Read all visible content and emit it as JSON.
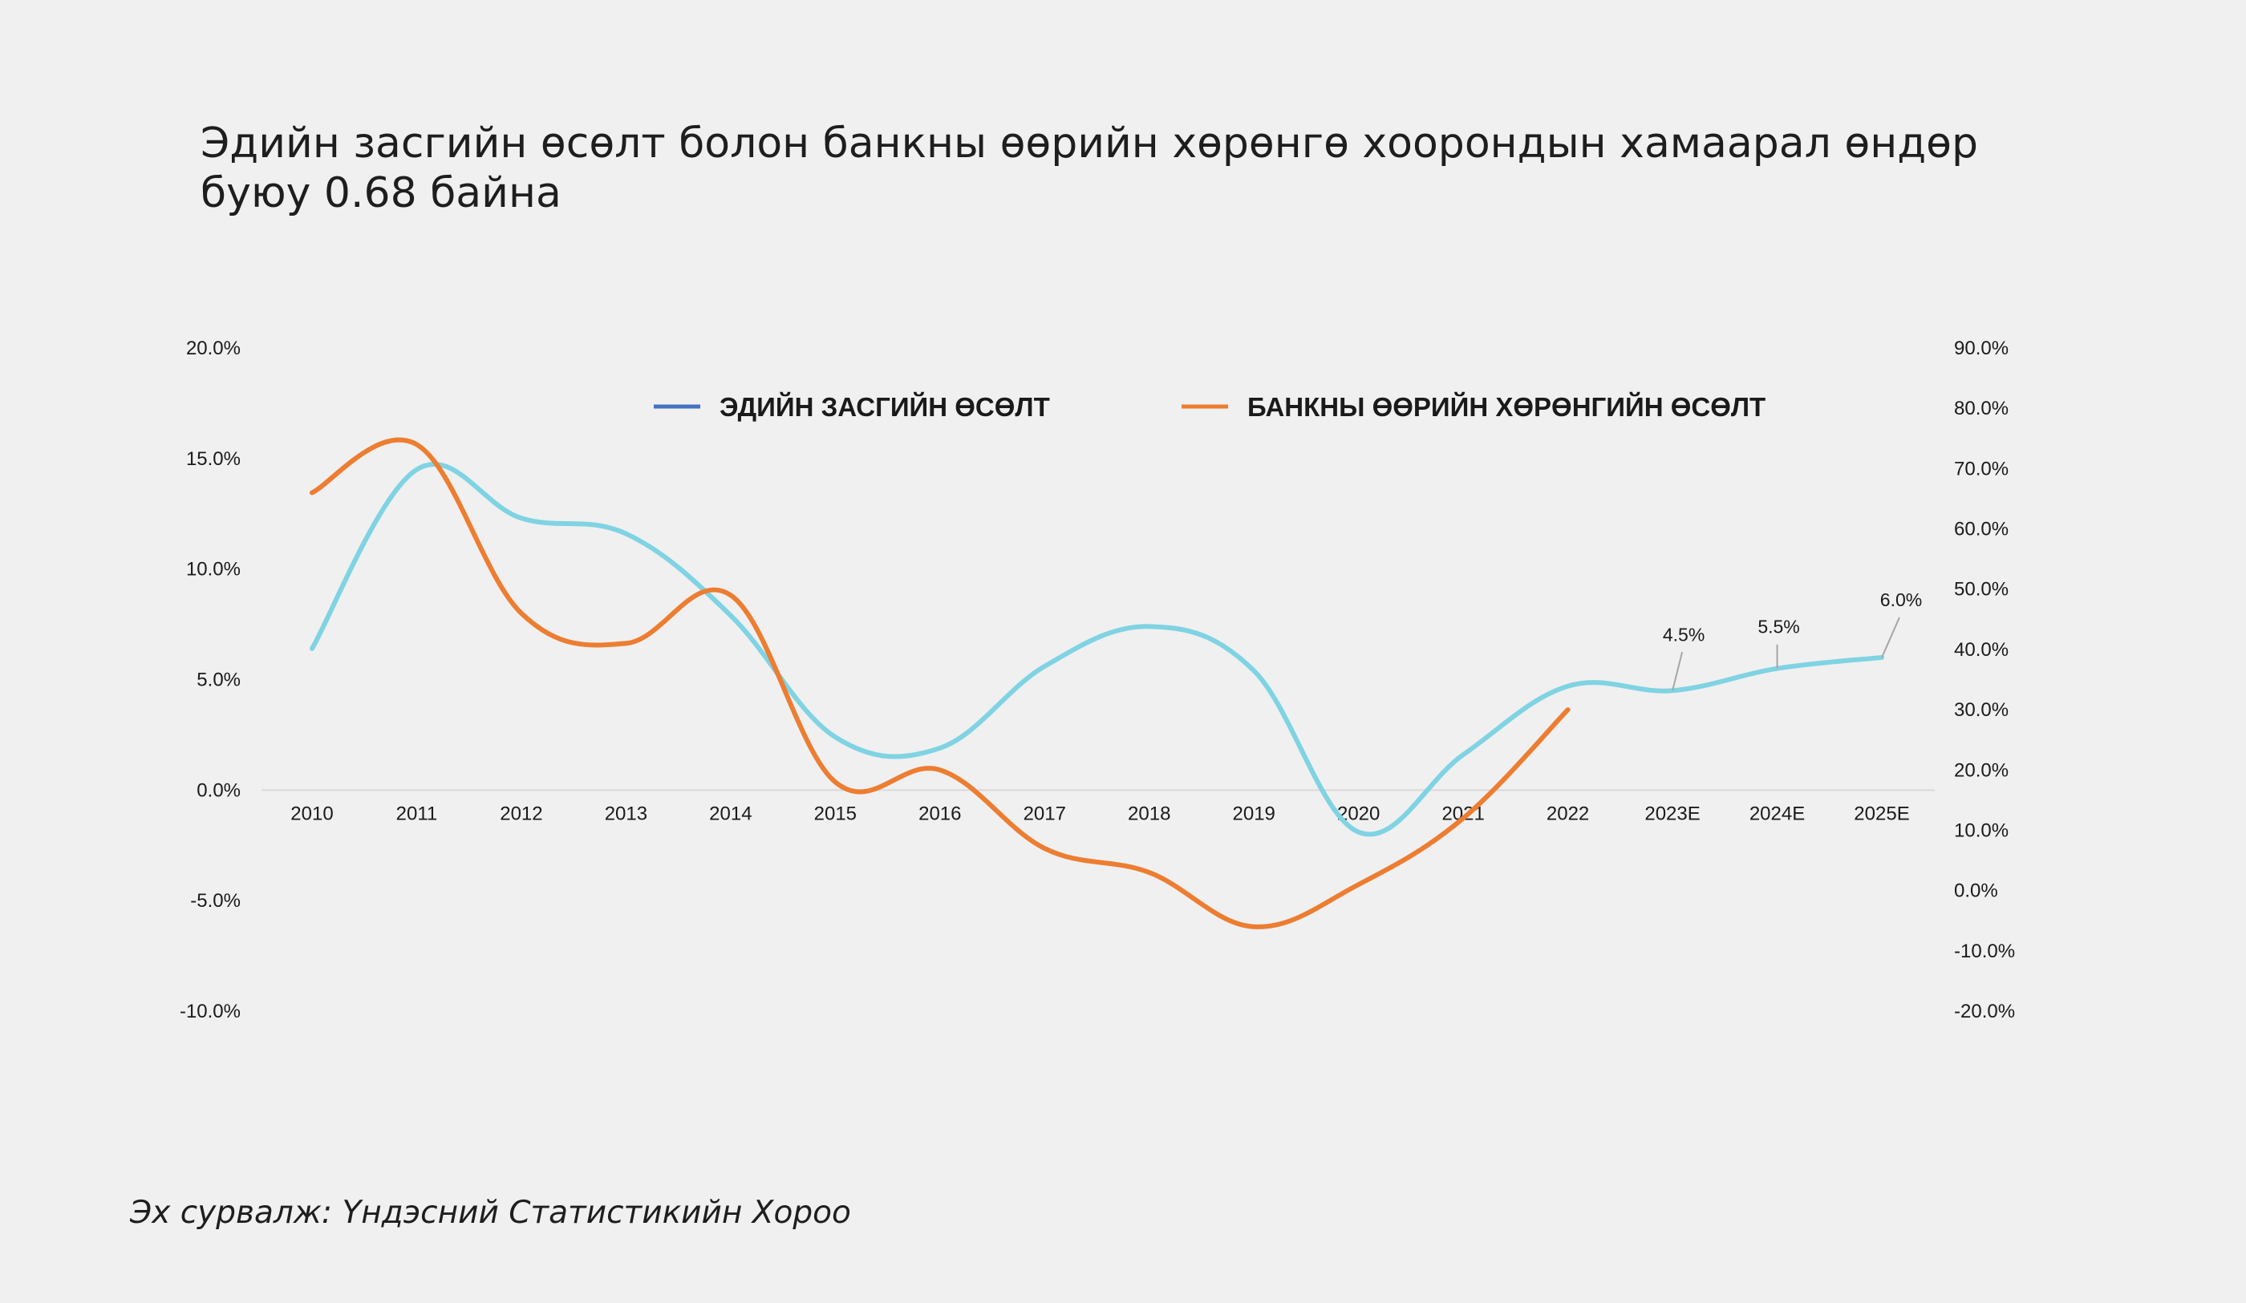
{
  "title": "Эдийн засгийн өсөлт болон банкны өөрийн хөрөнгө хоорондын хамаарал өндөр буюу 0.68 байна",
  "source": "Эх сурвалж: Үндэсний Статистикийн Хороо",
  "chart_data": {
    "type": "line",
    "categories": [
      "2010",
      "2011",
      "2012",
      "2013",
      "2014",
      "2015",
      "2016",
      "2017",
      "2018",
      "2019",
      "2020",
      "2021",
      "2022",
      "2023E",
      "2024E",
      "2025E"
    ],
    "series": [
      {
        "name": "ЭДИЙН ЗАСГИЙН ӨСӨЛТ",
        "axis": "left",
        "legend_color": "#4472c4",
        "line_color": "#7fd3e3",
        "values": [
          6.4,
          14.5,
          12.3,
          11.6,
          7.9,
          2.4,
          1.9,
          5.6,
          7.4,
          5.4,
          -1.9,
          1.6,
          4.7,
          4.5,
          5.5,
          6.0
        ]
      },
      {
        "name": "БАНКНЫ ӨӨРИЙН ХӨРӨНГИЙН ӨСӨЛТ",
        "axis": "right",
        "legend_color": "#ed7d31",
        "line_color": "#ed7d31",
        "values": [
          66,
          74,
          46,
          41,
          49,
          18,
          20,
          7,
          3,
          -6,
          1,
          12,
          30,
          null,
          null,
          null
        ]
      }
    ],
    "y_left": {
      "range": [
        -10,
        20
      ],
      "ticks": [
        20,
        15,
        10,
        5,
        0,
        -5,
        -10
      ],
      "tick_labels": [
        "20.0%",
        "15.0%",
        "10.0%",
        "5.0%",
        "0.0%",
        "-5.0%",
        "-10.0%"
      ]
    },
    "y_right": {
      "range": [
        -20,
        90
      ],
      "ticks": [
        90,
        80,
        70,
        60,
        50,
        40,
        30,
        20,
        10,
        0,
        -10,
        -20
      ],
      "tick_labels": [
        "90.0%",
        "80.0%",
        "70.0%",
        "60.0%",
        "50.0%",
        "40.0%",
        "30.0%",
        "20.0%",
        "10.0%",
        "0.0%",
        "-10.0%",
        "-20.0%"
      ]
    },
    "annotations": [
      {
        "category": "2023E",
        "label": "4.5%"
      },
      {
        "category": "2024E",
        "label": "5.5%"
      },
      {
        "category": "2025E",
        "label": "6.0%"
      }
    ],
    "legend_position": "top",
    "grid": false
  }
}
